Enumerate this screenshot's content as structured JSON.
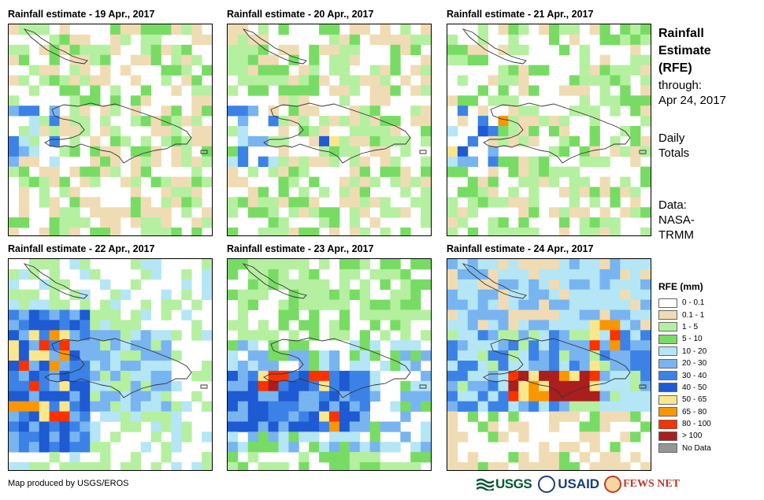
{
  "panels": [
    {
      "title": "Rainfall estimate - 19 Apr., 2017",
      "seed": 19,
      "profile": "light"
    },
    {
      "title": "Rainfall estimate - 20 Apr., 2017",
      "seed": 20,
      "profile": "light"
    },
    {
      "title": "Rainfall estimate - 21 Apr., 2017",
      "seed": 21,
      "profile": "lightest"
    },
    {
      "title": "Rainfall estimate - 22 Apr., 2017",
      "seed": 22,
      "profile": "heavy-west"
    },
    {
      "title": "Rainfall estimate - 23 Apr., 2017",
      "seed": 23,
      "profile": "heavy-south"
    },
    {
      "title": "Rainfall estimate - 24 Apr., 2017",
      "seed": 24,
      "profile": "heavy-east"
    }
  ],
  "side": {
    "title_lines": [
      "Rainfall",
      "Estimate",
      "(RFE)"
    ],
    "through_label": "through:",
    "through_date": "Apr 24, 2017",
    "daily_lines": [
      "Daily",
      "Totals"
    ],
    "data_lines": [
      "Data:",
      "NASA-",
      "TRMM"
    ]
  },
  "legend": {
    "title": "RFE (mm)",
    "items": [
      {
        "label": "0 - 0.1",
        "color": "#ffffff"
      },
      {
        "label": "0.1 - 1",
        "color": "#f0dcb4"
      },
      {
        "label": "1 - 5",
        "color": "#b4f0a0"
      },
      {
        "label": "5 - 10",
        "color": "#78dc64"
      },
      {
        "label": "10 - 20",
        "color": "#b4e6f5"
      },
      {
        "label": "20 - 30",
        "color": "#78b4f0"
      },
      {
        "label": "30 - 40",
        "color": "#3c82e6"
      },
      {
        "label": "40 - 50",
        "color": "#1e5ad2"
      },
      {
        "label": "50 - 65",
        "color": "#fae68c"
      },
      {
        "label": "65 - 80",
        "color": "#fa9600"
      },
      {
        "label": "80 - 100",
        "color": "#fa3200"
      },
      {
        "label": "> 100",
        "color": "#aa1e1e"
      },
      {
        "label": "No Data",
        "color": "#969696"
      }
    ]
  },
  "credit": "Map produced by USGS/EROS",
  "logos": {
    "usgs": "USGS",
    "usaid": "USAID",
    "fews": "FEWS NET"
  }
}
